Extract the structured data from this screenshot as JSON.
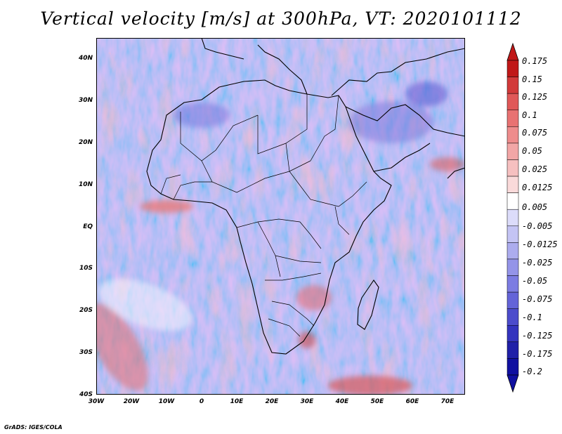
{
  "title": "Vertical velocity [m/s] at 300hPa, VT: 2020101112",
  "credit": "GrADS: IGES/COLA",
  "y_axis_labels": [
    "40N",
    "30N",
    "20N",
    "10N",
    "EQ",
    "10S",
    "20S",
    "30S",
    "40S"
  ],
  "x_axis_labels": [
    "30W",
    "20W",
    "10W",
    "0",
    "10E",
    "20E",
    "30E",
    "40E",
    "50E",
    "60E",
    "70E"
  ],
  "colorbar": {
    "labels": [
      "0.175",
      "0.15",
      "0.125",
      "0.1",
      "0.075",
      "0.05",
      "0.025",
      "0.0125",
      "0.005",
      "-0.005",
      "-0.0125",
      "-0.025",
      "-0.05",
      "-0.075",
      "-0.1",
      "-0.125",
      "-0.175",
      "-0.2"
    ],
    "colors": [
      "#c01818",
      "#d23a3a",
      "#e05858",
      "#e87272",
      "#ee8c8c",
      "#f2a6a6",
      "#f6c0c0",
      "#fadada",
      "#ffffff",
      "#dcdcfa",
      "#c4c4f4",
      "#acacee",
      "#9494e8",
      "#7c7ce2",
      "#6464d8",
      "#4c4ccc",
      "#3434be",
      "#2020a8",
      "#1010a0"
    ]
  }
}
